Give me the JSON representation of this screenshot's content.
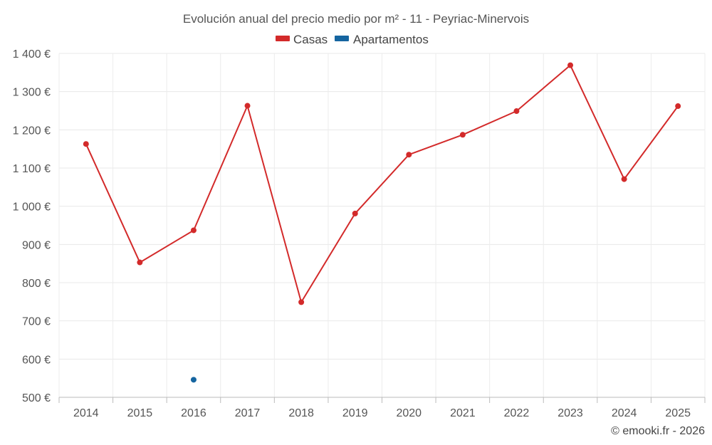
{
  "chart_data": {
    "type": "line",
    "title": "Evolución anual del precio medio por m² - 11 - Peyriac-Minervois",
    "categories": [
      "2014",
      "2015",
      "2016",
      "2017",
      "2018",
      "2019",
      "2020",
      "2021",
      "2022",
      "2023",
      "2024",
      "2025"
    ],
    "ylim": [
      500,
      1400
    ],
    "yticks": [
      500,
      600,
      700,
      800,
      900,
      1000,
      1100,
      1200,
      1300,
      1400
    ],
    "ytick_labels": [
      "500 €",
      "600 €",
      "700 €",
      "800 €",
      "900 €",
      "1 000 €",
      "1 100 €",
      "1 200 €",
      "1 300 €",
      "1 400 €"
    ],
    "grid": true,
    "legend_position": "top-center",
    "series": [
      {
        "name": "Casas",
        "color": "#d32a2a",
        "values": [
          1163,
          853,
          937,
          1263,
          749,
          981,
          1135,
          1187,
          1249,
          1369,
          1071,
          1262
        ]
      },
      {
        "name": "Apartamentos",
        "color": "#1565a0",
        "values": [
          null,
          null,
          546,
          null,
          null,
          null,
          null,
          null,
          null,
          null,
          null,
          null
        ]
      }
    ]
  },
  "credit": "© emooki.fr - 2026"
}
